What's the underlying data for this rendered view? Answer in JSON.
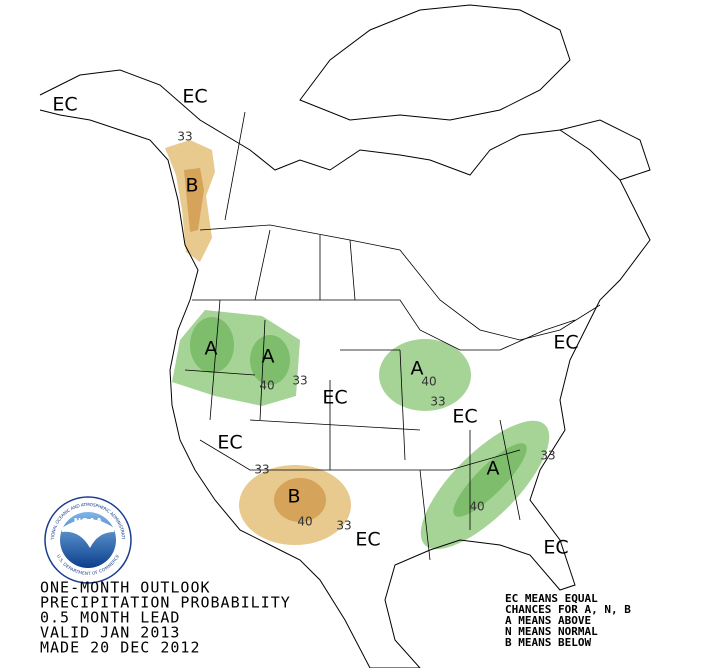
{
  "map": {
    "region_labels": [
      "EC",
      "EC",
      "B",
      "A",
      "A",
      "EC",
      "A",
      "EC",
      "EC",
      "EC",
      "B",
      "EC",
      "A",
      "EC"
    ],
    "contour_labels": [
      33,
      40,
      33,
      40,
      33,
      33,
      40,
      33,
      33,
      40
    ]
  },
  "title": [
    "ONE-MONTH OUTLOOK",
    "PRECIPITATION PROBABILITY",
    "0.5 MONTH LEAD",
    "VALID JAN 2013",
    "MADE 20 DEC 2012"
  ],
  "legend": [
    "EC MEANS EQUAL",
    "CHANCES FOR A, N, B",
    "A MEANS ABOVE",
    "N MEANS NORMAL",
    "B MEANS BELOW"
  ],
  "logo": {
    "name": "NOAA",
    "ring_top": "NATIONAL OCEANIC AND ATMOSPHERIC ADMINISTRATION",
    "ring_bottom": "U.S. DEPARTMENT OF COMMERCE"
  }
}
